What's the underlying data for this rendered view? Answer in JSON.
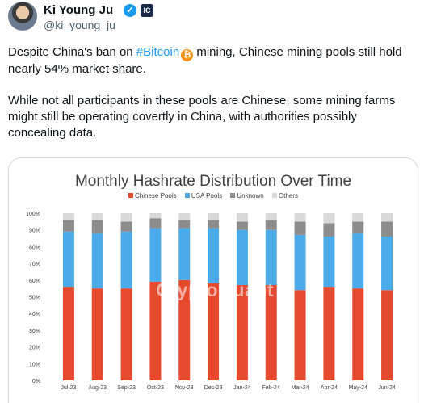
{
  "author": {
    "name": "Ki Young Ju",
    "handle": "@ki_young_ju",
    "verified_icon": "verified-badge-icon",
    "org_badge_text": "IC"
  },
  "tweet": {
    "line1_before": "Despite China's ban on ",
    "hashtag": "#Bitcoin",
    "btc_symbol": "₿",
    "line1_after": " mining, Chinese mining pools still hold nearly 54% market share.",
    "paragraph2": "While not all participants in these pools are Chinese, some mining farms might still be operating covertly in China, with authorities possibly concealing data."
  },
  "watermark": "CryptoQuant",
  "chart_data": {
    "type": "bar",
    "stacked": true,
    "title": "Monthly Hashrate Distribution Over Time",
    "categories": [
      "Jul-23",
      "Aug-23",
      "Sep-23",
      "Oct-23",
      "Nov-23",
      "Dec-23",
      "Jan-24",
      "Feb-24",
      "Mar-24",
      "Apr-24",
      "May-24",
      "Jun-24"
    ],
    "series": [
      {
        "name": "Chinese Pools",
        "color": "#e64a2e",
        "values": [
          56,
          55,
          55,
          59,
          60,
          58,
          57,
          57,
          54,
          56,
          55,
          54
        ]
      },
      {
        "name": "USA Pools",
        "color": "#4aabe8",
        "values": [
          33,
          33,
          34,
          32,
          31,
          33,
          33,
          33,
          33,
          30,
          33,
          32
        ]
      },
      {
        "name": "Unknown",
        "color": "#8c8c8c",
        "values": [
          7,
          8,
          6,
          6,
          5,
          5,
          5,
          6,
          8,
          8,
          7,
          9
        ]
      },
      {
        "name": "Others",
        "color": "#d9d9d9",
        "values": [
          4,
          4,
          5,
          3,
          4,
          4,
          5,
          4,
          5,
          6,
          5,
          5
        ]
      }
    ],
    "yticks": [
      "0%",
      "10%",
      "20%",
      "30%",
      "40%",
      "50%",
      "60%",
      "70%",
      "80%",
      "90%",
      "100%"
    ],
    "ylim": [
      0,
      100
    ],
    "legend_position": "top-center",
    "grid": false
  }
}
